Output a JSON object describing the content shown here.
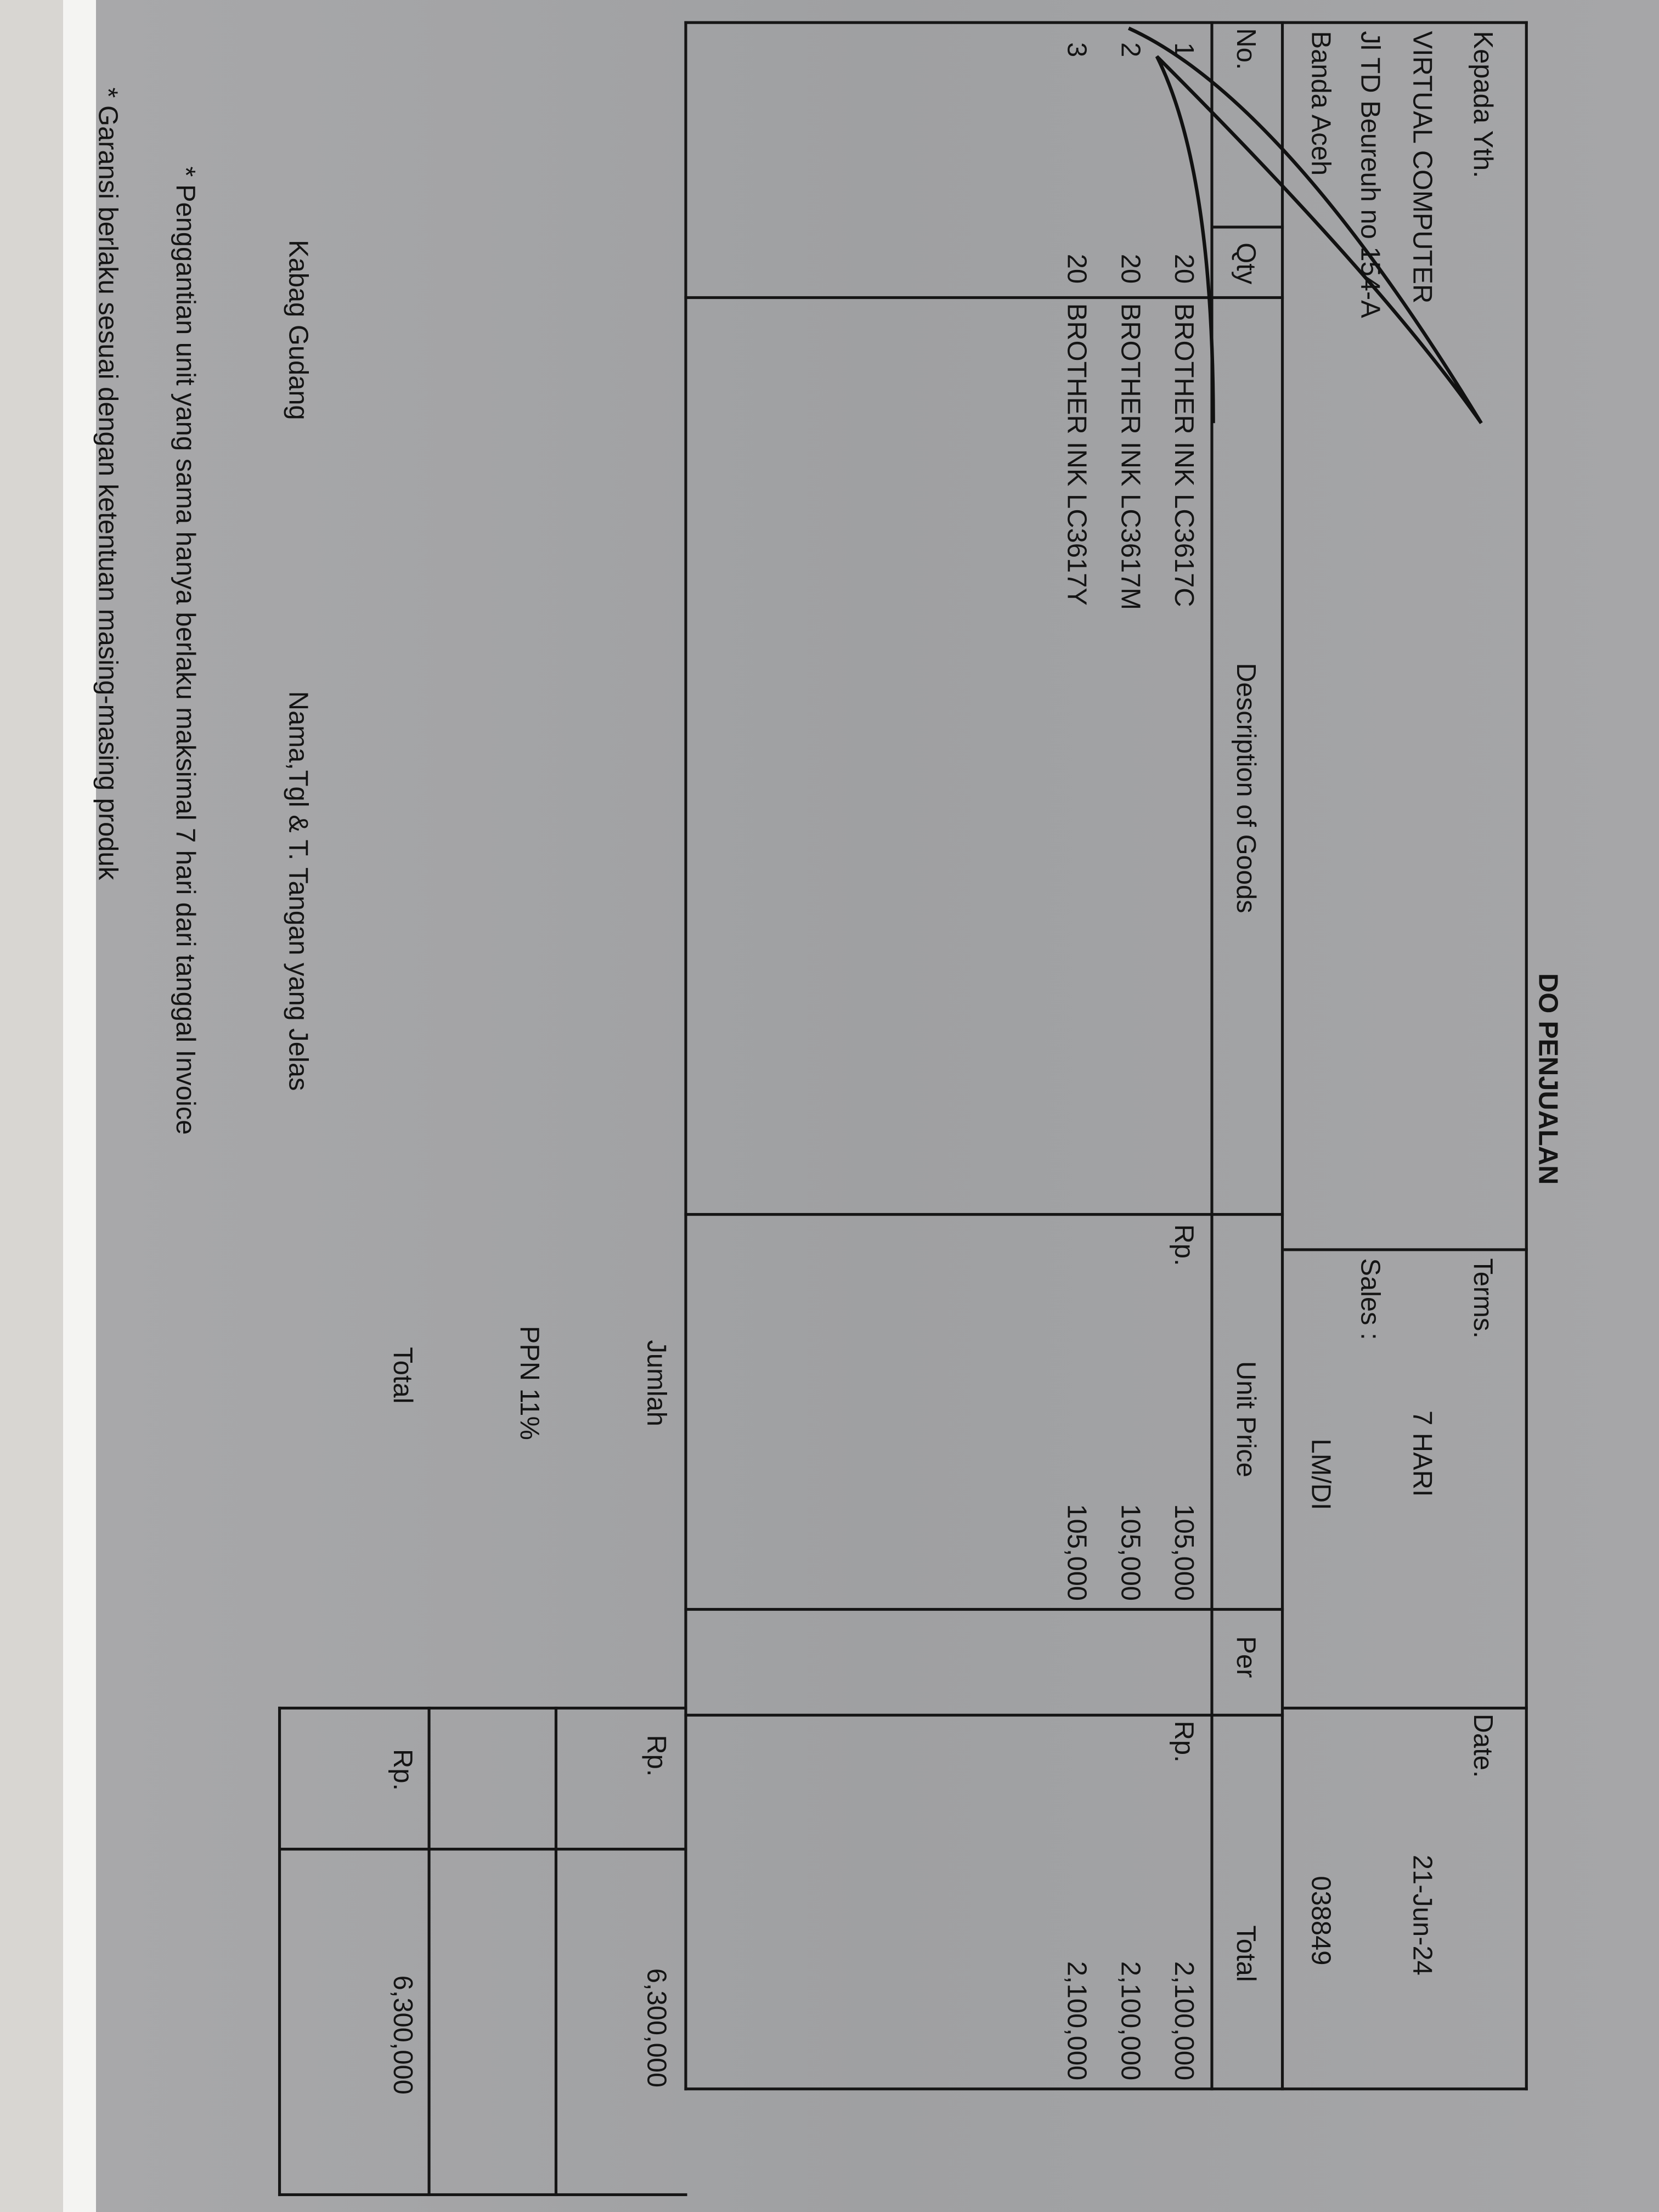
{
  "title": "DO PENJUALAN",
  "recipient": {
    "label": "Kepada Yth.",
    "name": "VIRTUAL COMPUTER",
    "address": "Jl TD Beureuh no 154-A",
    "city": "Banda Aceh"
  },
  "terms": {
    "label": "Terms.",
    "value": "7 HARI"
  },
  "sales": {
    "label": "Sales :",
    "value": "LM/DI"
  },
  "date": {
    "label": "Date.",
    "value": "21-Jun-24",
    "number": "038849"
  },
  "columns": {
    "no": "No.",
    "qty": "Qty",
    "description": "Description of Goods",
    "unit_price": "Unit Price",
    "per": "Per",
    "total": "Total"
  },
  "currency": "Rp.",
  "items": [
    {
      "no": "1",
      "qty": "20",
      "description": "BROTHER INK LC3617C",
      "unit_price": "105,000",
      "total": "2,100,000"
    },
    {
      "no": "2",
      "qty": "20",
      "description": "BROTHER INK LC3617M",
      "unit_price": "105,000",
      "total": "2,100,000"
    },
    {
      "no": "3",
      "qty": "20",
      "description": "BROTHER INK LC3617Y",
      "unit_price": "105,000",
      "total": "2,100,000"
    }
  ],
  "summary": {
    "jumlah_label": "Jumlah",
    "jumlah_value": "6,300,000",
    "ppn_label": "PPN 11%",
    "total_label": "Total",
    "total_value": "6,300,000"
  },
  "signature": {
    "role": "Kabag Gudang",
    "instruction": "Nama,Tgl & T. Tangan yang Jelas"
  },
  "notes": [
    "* Penggantian unit yang sama hanya berlaku maksimal 7 hari dari tanggal Invoice",
    "* Garansi berlaku sesuai dengan ketentuan masing-masing produk"
  ]
}
